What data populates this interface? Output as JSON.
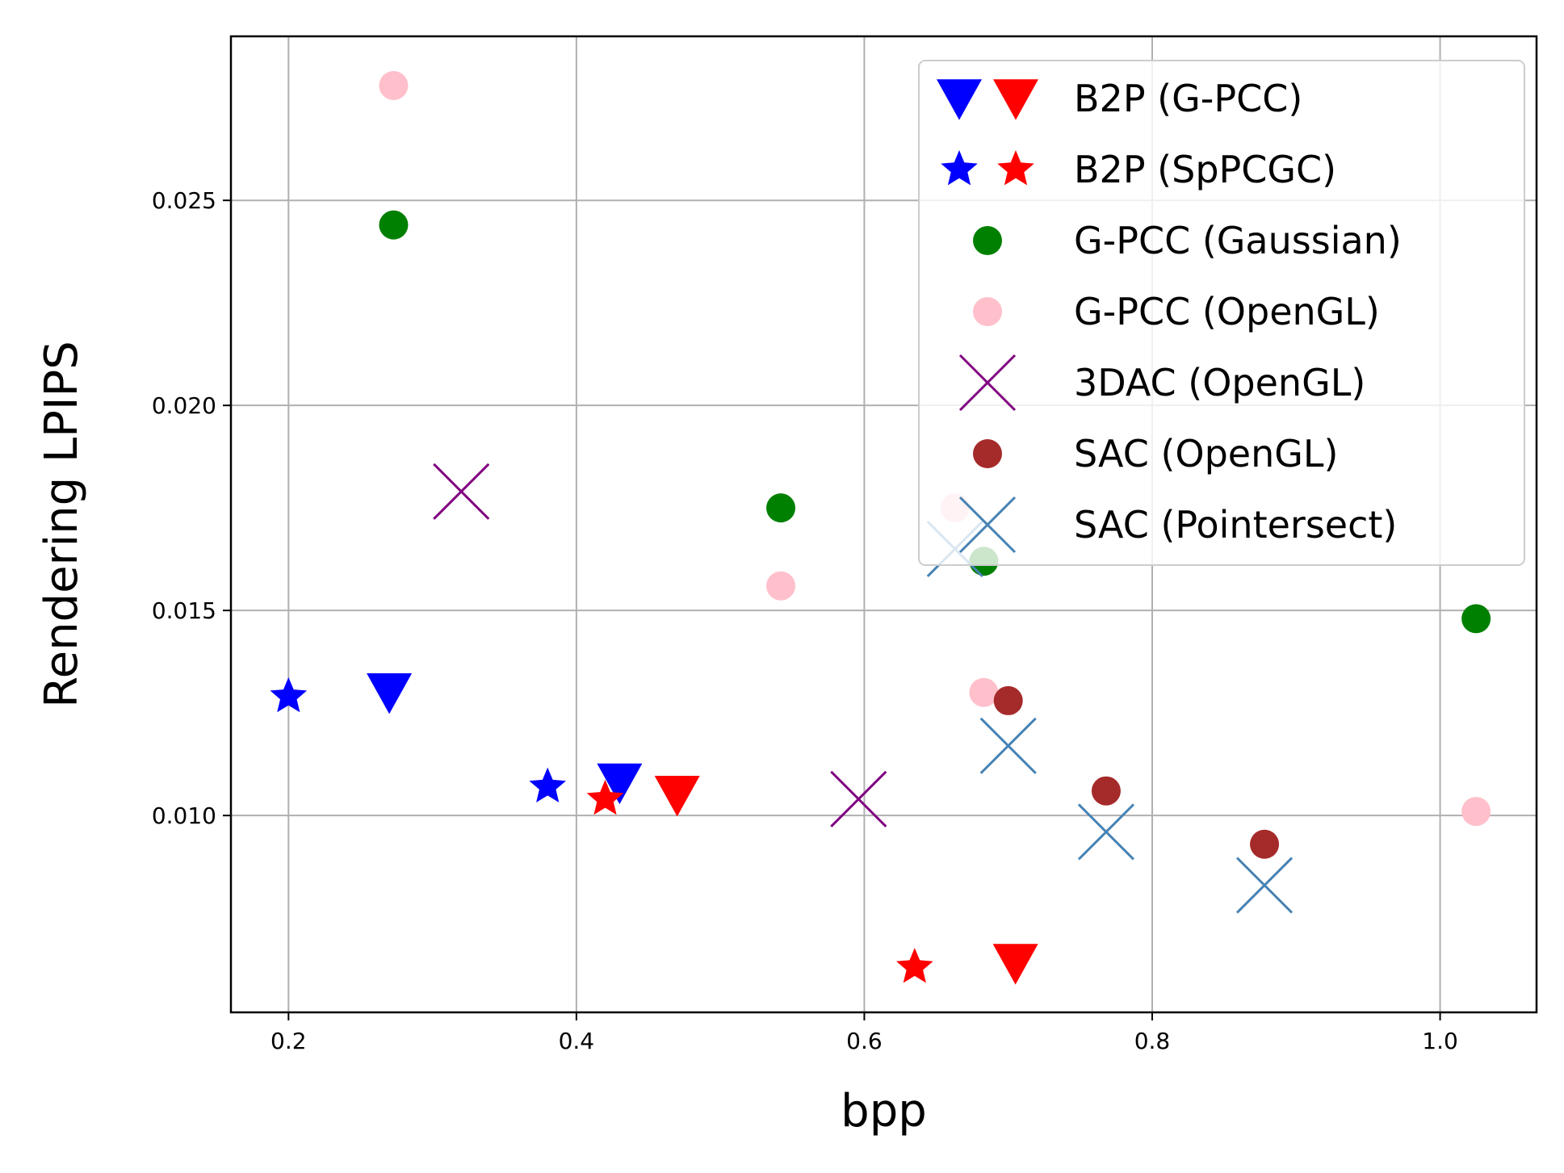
{
  "chart_data": {
    "type": "scatter",
    "title": "",
    "xlabel": "bpp",
    "ylabel": "Rendering LPIPS",
    "xlim": [
      0.16,
      1.067
    ],
    "ylim": [
      0.0052,
      0.029
    ],
    "xticks": [
      0.2,
      0.4,
      0.6,
      0.8,
      1.0
    ],
    "xtick_labels": [
      "0.2",
      "0.4",
      "0.6",
      "0.8",
      "1.0"
    ],
    "yticks": [
      0.01,
      0.015,
      0.02,
      0.025
    ],
    "ytick_labels": [
      "0.010",
      "0.015",
      "0.020",
      "0.025"
    ],
    "grid": true,
    "legend_position": "top-right",
    "series": [
      {
        "name": "B2P (G-PCC)",
        "marker": "triangle-down",
        "colors": [
          "#0000ff",
          "#ff0000"
        ],
        "points": [
          {
            "x": 0.27,
            "y": 0.013,
            "color": "#0000ff"
          },
          {
            "x": 0.43,
            "y": 0.0108,
            "color": "#0000ff"
          },
          {
            "x": 0.47,
            "y": 0.0105,
            "color": "#ff0000"
          },
          {
            "x": 0.705,
            "y": 0.0064,
            "color": "#ff0000"
          }
        ]
      },
      {
        "name": "B2P (SpPCGC)",
        "marker": "star",
        "colors": [
          "#0000ff",
          "#ff0000"
        ],
        "points": [
          {
            "x": 0.2,
            "y": 0.0129,
            "color": "#0000ff"
          },
          {
            "x": 0.38,
            "y": 0.0107,
            "color": "#0000ff"
          },
          {
            "x": 0.42,
            "y": 0.0104,
            "color": "#ff0000"
          },
          {
            "x": 0.635,
            "y": 0.0063,
            "color": "#ff0000"
          }
        ]
      },
      {
        "name": "G-PCC (Gaussian)",
        "marker": "circle",
        "colors": [
          "#008000"
        ],
        "points": [
          {
            "x": 0.273,
            "y": 0.0244,
            "color": "#008000"
          },
          {
            "x": 0.542,
            "y": 0.0175,
            "color": "#008000"
          },
          {
            "x": 0.683,
            "y": 0.0162,
            "color": "#008000"
          },
          {
            "x": 1.025,
            "y": 0.0148,
            "color": "#008000"
          }
        ]
      },
      {
        "name": "G-PCC (OpenGL)",
        "marker": "circle",
        "colors": [
          "#ffc0cb"
        ],
        "points": [
          {
            "x": 0.273,
            "y": 0.0278,
            "color": "#ffc0cb"
          },
          {
            "x": 0.542,
            "y": 0.0156,
            "color": "#ffc0cb"
          },
          {
            "x": 0.663,
            "y": 0.0175,
            "color": "#ffc0cb"
          },
          {
            "x": 0.683,
            "y": 0.013,
            "color": "#ffc0cb"
          },
          {
            "x": 1.025,
            "y": 0.0101,
            "color": "#ffc0cb"
          }
        ]
      },
      {
        "name": "3DAC (OpenGL)",
        "marker": "x",
        "colors": [
          "#800080"
        ],
        "points": [
          {
            "x": 0.32,
            "y": 0.0179,
            "color": "#800080"
          },
          {
            "x": 0.596,
            "y": 0.0104,
            "color": "#800080"
          }
        ]
      },
      {
        "name": "SAC (OpenGL)",
        "marker": "circle",
        "colors": [
          "#a52a2a"
        ],
        "points": [
          {
            "x": 0.7,
            "y": 0.0128,
            "color": "#a52a2a"
          },
          {
            "x": 0.768,
            "y": 0.0106,
            "color": "#a52a2a"
          },
          {
            "x": 0.878,
            "y": 0.0093,
            "color": "#a52a2a"
          }
        ]
      },
      {
        "name": "SAC (Pointersect)",
        "marker": "x",
        "colors": [
          "#4682b4"
        ],
        "points": [
          {
            "x": 0.663,
            "y": 0.0165,
            "color": "#4682b4"
          },
          {
            "x": 0.7,
            "y": 0.0117,
            "color": "#4682b4"
          },
          {
            "x": 0.768,
            "y": 0.0096,
            "color": "#4682b4"
          },
          {
            "x": 0.878,
            "y": 0.0083,
            "color": "#4682b4"
          }
        ]
      }
    ]
  }
}
